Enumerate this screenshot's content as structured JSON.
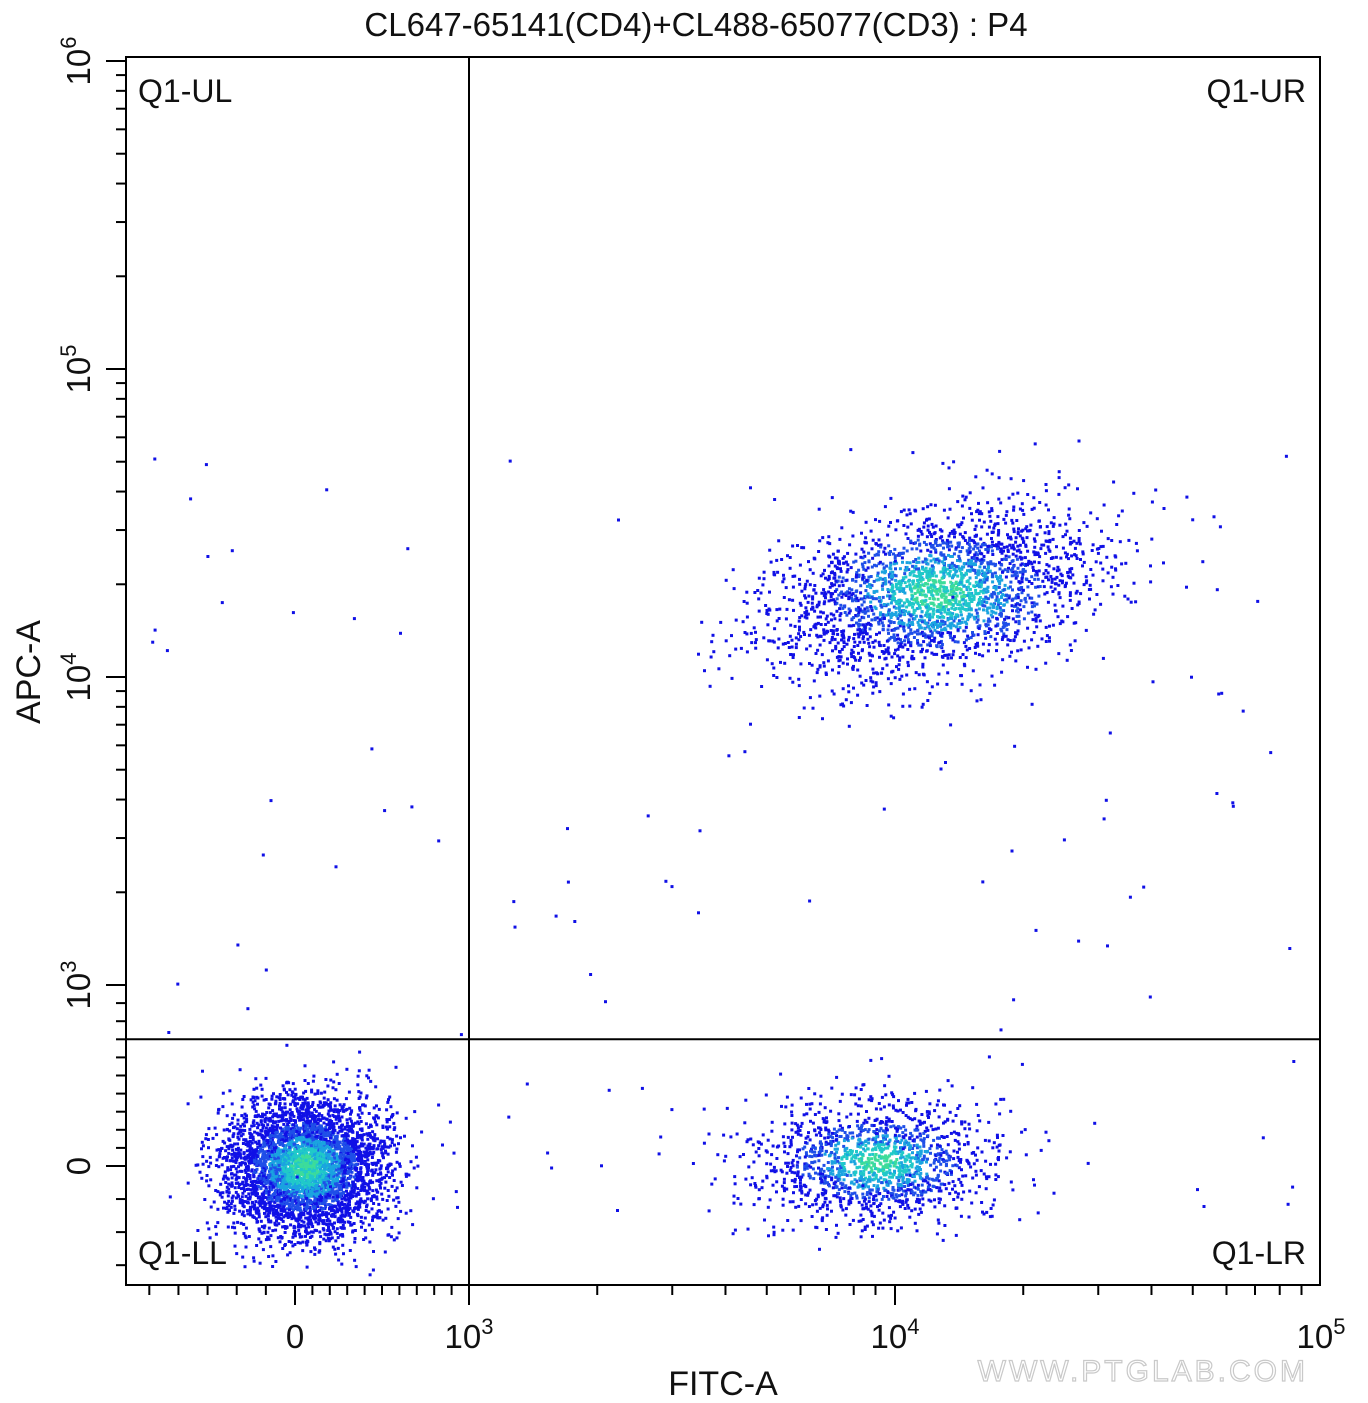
{
  "chart_data": {
    "type": "scatter",
    "style": "flow-cytometry-density-dot-plot",
    "title": "CL647-65141(CD4)+CL488-65077(CD3) : P4",
    "xlabel": "FITC-A",
    "ylabel": "APC-A",
    "x_scale": "biexponential",
    "y_scale": "biexponential",
    "x_tick_labels": [
      {
        "value": 0,
        "base": "0",
        "exp": ""
      },
      {
        "value": 1000,
        "base": "10",
        "exp": "3"
      },
      {
        "value": 10000,
        "base": "10",
        "exp": "4"
      },
      {
        "value": 100000,
        "base": "10",
        "exp": "5"
      }
    ],
    "y_tick_labels": [
      {
        "value": 0,
        "base": "0",
        "exp": ""
      },
      {
        "value": 1000,
        "base": "10",
        "exp": "3"
      },
      {
        "value": 10000,
        "base": "10",
        "exp": "4"
      },
      {
        "value": 100000,
        "base": "10",
        "exp": "5"
      },
      {
        "value": 1000000,
        "base": "10",
        "exp": "6"
      }
    ],
    "quadrant_gate": {
      "x": 1000,
      "y": 700
    },
    "quadrants": [
      {
        "name": "Q1-UL",
        "position": "top-left"
      },
      {
        "name": "Q1-UR",
        "position": "top-right"
      },
      {
        "name": "Q1-LL",
        "position": "bottom-left"
      },
      {
        "name": "Q1-LR",
        "position": "bottom-right"
      }
    ],
    "populations": [
      {
        "region": "Q1-LL",
        "center_x": 50,
        "center_y": 0,
        "relative_count": 4200
      },
      {
        "region": "Q1-LR",
        "center_x": 9000,
        "center_y": 30,
        "relative_count": 1500
      },
      {
        "region": "Q1-UR",
        "center_x": 12500,
        "center_y": 19000,
        "relative_count": 2600
      }
    ],
    "density_colors": [
      "#1010e6",
      "#1f4fe8",
      "#1aa3e0",
      "#20c9c9",
      "#3ddc9a"
    ],
    "grid": false,
    "legend": "none"
  },
  "watermark": "WWW.PTGLAB.COM"
}
